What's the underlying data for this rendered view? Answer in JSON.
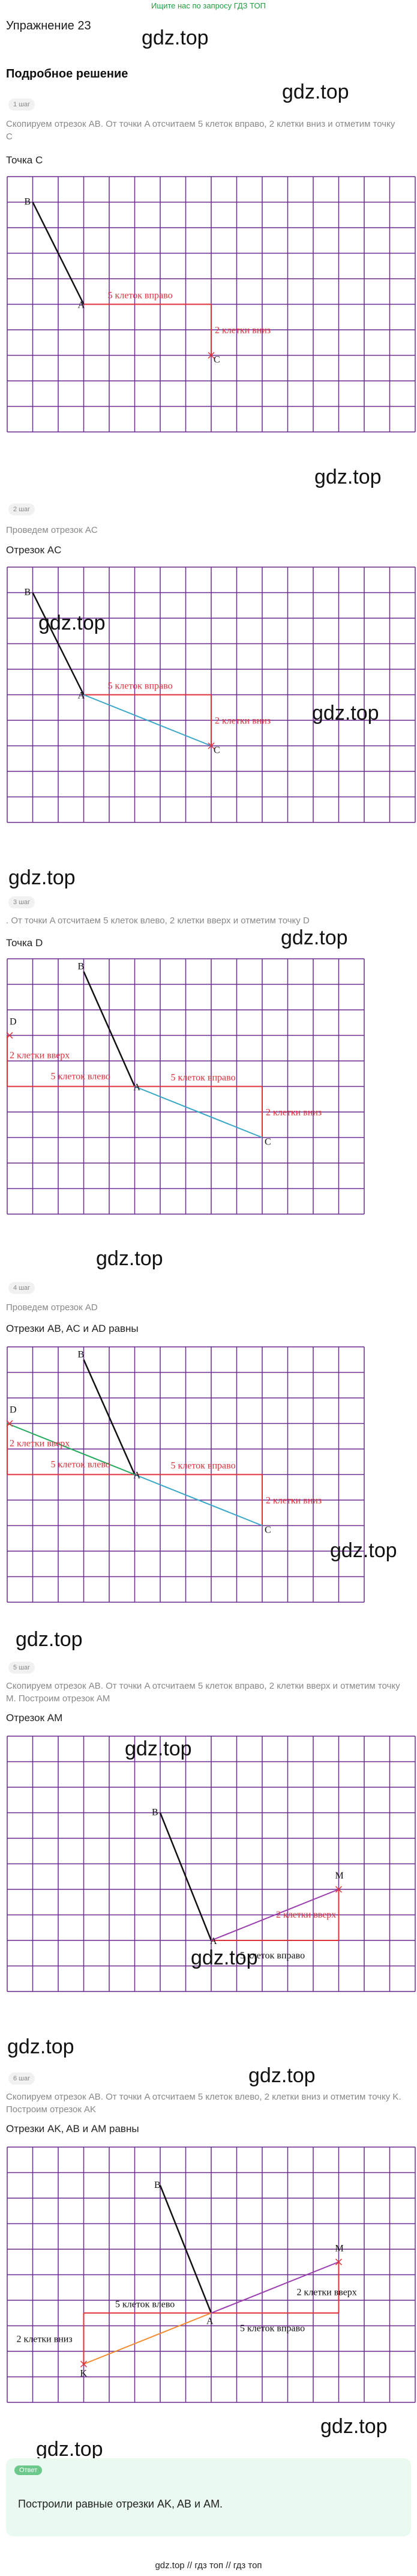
{
  "top_link": "Ищите нас по запросу ГДЗ ТОП",
  "exercise_title": "Упражнение 23",
  "detailed_solution": "Подробное решение",
  "watermark": "gdz.top",
  "steps": [
    {
      "badge": "1 шаг",
      "description": "Скопируем отрезок AB. От точки A отсчитаем 5 клеток вправо, 2 клетки вниз и отметим точку C",
      "caption": "Точка C",
      "labels": {
        "B": "B",
        "A": "A",
        "C": "C",
        "right5": "5 клеток вправо",
        "down2": "2 клетки вниз"
      }
    },
    {
      "badge": "2 шаг",
      "description": "Проведем отрезок AC",
      "caption": "Отрезок AC",
      "labels": {
        "B": "B",
        "A": "A",
        "C": "C",
        "right5": "5 клеток вправо",
        "down2": "2 клетки вниз"
      }
    },
    {
      "badge": "3 шаг",
      "description": ". От точки A отсчитаем 5 клеток влево, 2 клетки вверх и отметим точку D",
      "caption": "Точка D",
      "labels": {
        "B": "B",
        "A": "A",
        "C": "C",
        "D": "D",
        "up2": "2 клетки вверх",
        "left5": "5 клеток влево",
        "right5": "5 клеток вправо",
        "down2": "2 клетки вниз"
      }
    },
    {
      "badge": "4 шаг",
      "description": "Проведем отрезок AD",
      "caption": "Отрезки AB, AC и AD равны",
      "labels": {
        "B": "B",
        "A": "A",
        "C": "C",
        "D": "D",
        "up2": "2 клетки вверх",
        "left5": "5 клеток влево",
        "right5": "5 клеток вправо",
        "down2": "2 клетки вниз"
      }
    },
    {
      "badge": "5 шаг",
      "description": "Скопируем отрезок AB. От точки A отсчитаем 5 клеток вправо, 2 клетки вверх и отметим точку M. Построим отрезок AM",
      "caption": "Отрезок AM",
      "labels": {
        "B": "B",
        "A": "A",
        "M": "M",
        "up2": "2 клетки вверх",
        "right5": "5 клеток вправо"
      }
    },
    {
      "badge": "6 шаг",
      "description": "Скопируем отрезок AB. От точки A отсчитаем 5 клеток влево, 2 клетки вниз и отметим точку K. Построим отрезок AK",
      "caption": "Отрезки AK, AB и AM равны",
      "labels": {
        "B": "B",
        "A": "A",
        "M": "M",
        "K": "K",
        "left5": "5 клеток влево",
        "down2": "2 клетки вниз",
        "up2": "2 клетки вверх",
        "right5": "5 клеток вправо"
      }
    }
  ],
  "answer": {
    "badge": "Ответ",
    "text": "Построили равные отрезки AK, AB и AM."
  },
  "footer": {
    "link1": "gdz.top",
    "sep1": "//",
    "link2": "гдз топ",
    "sep2": "//",
    "link3": "гдз топ"
  },
  "colors": {
    "grid": "#6b2a8f",
    "segment_ab": "#111111",
    "segment_ac": "#3aa6c8",
    "segment_ad": "#22a85a",
    "segment_am": "#9b3cb0",
    "segment_ak": "#f28a2e",
    "guide": "#e0313a"
  }
}
